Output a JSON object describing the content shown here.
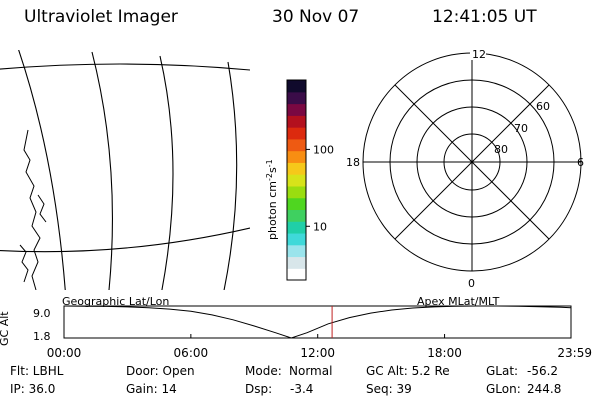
{
  "header": {
    "instrument": "Ultraviolet Imager",
    "date": "30 Nov 07",
    "time": "12:41:05 UT"
  },
  "colorbar": {
    "ylabel": "photon cm",
    "ylabel_sup1": "-2",
    "ylabel_mid": "s",
    "ylabel_sup2": "-1",
    "ticks": [
      "100",
      "10"
    ],
    "tick_values": [
      100,
      10
    ],
    "scale": "log",
    "range": [
      2,
      800
    ],
    "colors": [
      "#ffffff",
      "#d8e6ea",
      "#9ae4ec",
      "#3fd9d9",
      "#20cfa8",
      "#3fd060",
      "#4fd620",
      "#9add10",
      "#d7e31a",
      "#f6c81a",
      "#f88e12",
      "#ee5a12",
      "#dc2a0e",
      "#b3101e",
      "#7a0842",
      "#3a0c48",
      "#100a2c"
    ]
  },
  "polar": {
    "mlt_labels": [
      "12",
      "18",
      "6",
      "0"
    ],
    "mlat_labels": [
      "80",
      "70",
      "60"
    ],
    "mlat_rings": [
      80,
      70,
      60,
      50
    ]
  },
  "chart_data": {
    "type": "line",
    "title": "",
    "left_caption": "Geographic Lat/Lon",
    "right_caption": "Apex MLat/MLT",
    "ylabel": "GC Alt",
    "yticks": [
      "9.0",
      "1.8"
    ],
    "ylim": [
      1.8,
      9.0
    ],
    "xticks": [
      "00:00",
      "06:00",
      "12:00",
      "18:00",
      "23:59"
    ],
    "xlim_hours": [
      0,
      23.98
    ],
    "series": [
      {
        "x": [
          0,
          1,
          2,
          3,
          4,
          5,
          6,
          7,
          8,
          9,
          10,
          10.75,
          11.5,
          12.5,
          13.5,
          14.5,
          15.5,
          16.5,
          17.5,
          18.5,
          19.5,
          20.5,
          21.5,
          22.5,
          23.5,
          23.98
        ],
        "y": [
          9.0,
          8.95,
          8.9,
          8.8,
          8.6,
          8.3,
          7.8,
          7.0,
          5.9,
          4.5,
          3.0,
          1.8,
          3.0,
          5.0,
          6.4,
          7.4,
          8.1,
          8.55,
          8.8,
          8.95,
          9.0,
          9.0,
          8.95,
          8.85,
          8.7,
          8.6
        ]
      }
    ],
    "marker_time": "12:41",
    "marker_hours": 12.68
  },
  "footer": {
    "flt": "Flt: LBHL",
    "ip": "IP: 36.0",
    "door": "Door: Open",
    "gain": "Gain: 14",
    "mode_label": "Mode:",
    "mode_value": "Normal",
    "dsp_label": "Dsp:",
    "dsp_value": "-3.4",
    "gc_alt": "GC Alt: 5.2 Re",
    "seq": "Seq: 39",
    "glat_label": "GLat:",
    "glat_value": "-56.2",
    "glon_label": "GLon:",
    "glon_value": "244.8"
  }
}
